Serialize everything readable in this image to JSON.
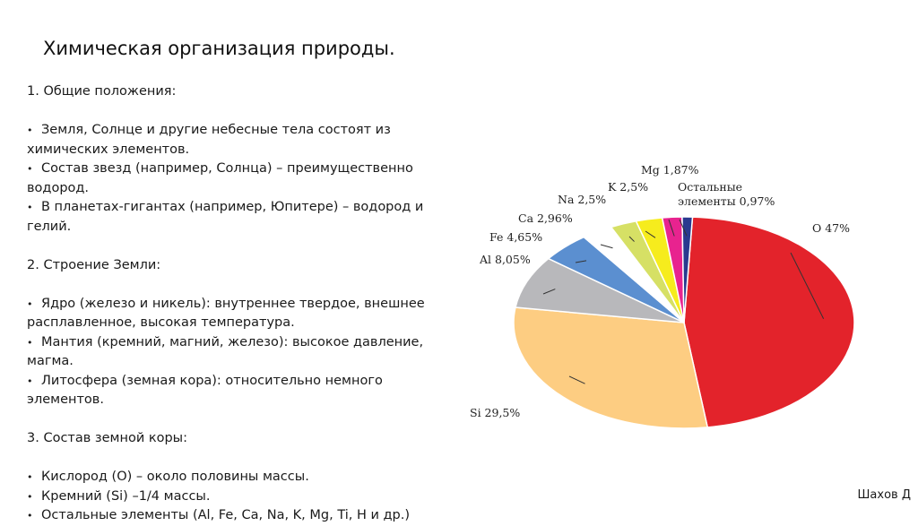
{
  "slide": {
    "title": "Химическая организация природы.",
    "author": "Шахов Д"
  },
  "content": {
    "section1_heading": "1. Общие положения:",
    "section1_items": [
      [
        "Земля, Солнце и другие небесные тела состоят из",
        "химических элементов."
      ],
      [
        "Состав звезд (например, Солнца) – преимущественно",
        "водород."
      ],
      [
        "В планетах-гигантах (например, Юпитере) – водород и",
        "гелий."
      ]
    ],
    "section2_heading": "2. Строение Земли:",
    "section2_items": [
      [
        "Ядро (железо и никель): внутреннее твердое, внешнее",
        "расплавленное, высокая температура."
      ],
      [
        "Мантия (кремний, магний, железо): высокое давление,",
        "магма."
      ],
      [
        "Литосфера (земная кора): относительно немного",
        "элементов."
      ]
    ],
    "section3_heading": "3. Состав земной коры:",
    "section3_items": [
      [
        "Кислород (О) – около половины массы."
      ],
      [
        "Кремний (Si) –1/4 массы."
      ],
      [
        "Остальные элементы (Al, Fe, Ca, Na, K, Mg, Ti, H и др.)"
      ]
    ]
  },
  "chart_data": {
    "type": "pie",
    "title": "",
    "slices": [
      {
        "label": "O 47%",
        "element": "O",
        "value": 47,
        "color": "#e3232b"
      },
      {
        "label": "Si 29,5%",
        "element": "Si",
        "value": 29.5,
        "color": "#fdcd82"
      },
      {
        "label": "Al 8,05%",
        "element": "Al",
        "value": 8.05,
        "color": "#b8b8bb"
      },
      {
        "label": "Fe 4,65%",
        "element": "Fe",
        "value": 4.65,
        "color": "#5b8fd0"
      },
      {
        "label": "Ca 2,96%",
        "element": "Ca",
        "value": 2.96,
        "color": "#ffffff"
      },
      {
        "label": "Na 2,5%",
        "element": "Na",
        "value": 2.5,
        "color": "#d6e065"
      },
      {
        "label": "K 2,5%",
        "element": "K",
        "value": 2.5,
        "color": "#f6ec1d"
      },
      {
        "label": "Mg 1,87%",
        "element": "Mg",
        "value": 1.87,
        "color": "#e8238f"
      },
      {
        "label": "Остальные элементы 0,97%",
        "element": "Остальные элементы",
        "value": 0.97,
        "color": "#2a3a8f"
      }
    ],
    "legend": "labels-with-leader-lines"
  }
}
